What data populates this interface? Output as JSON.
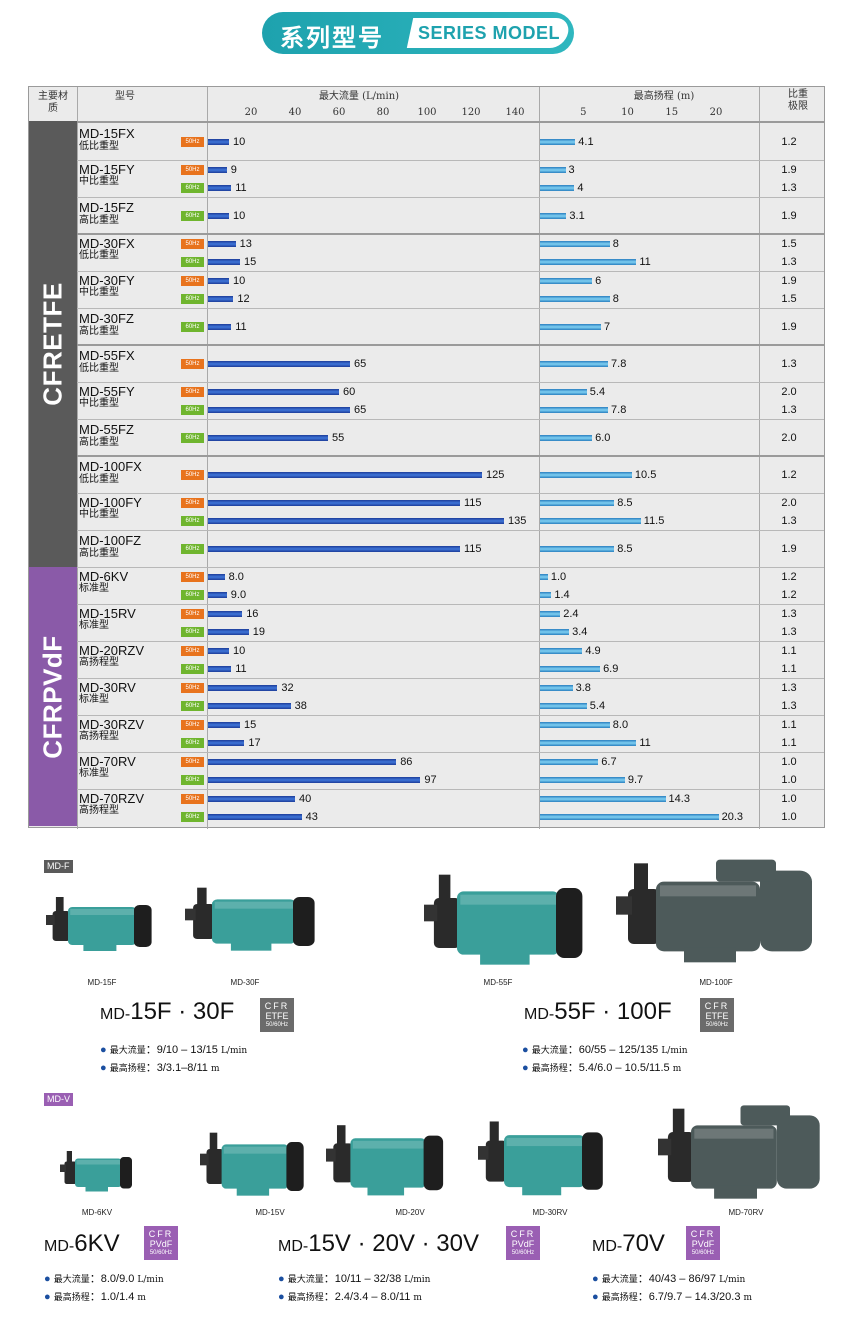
{
  "header": {
    "title_cn": "系列型号",
    "title_en": "SERIES MODEL"
  },
  "table": {
    "col_material": "主要材质",
    "col_model": "型号",
    "col_flow": "最大流量 (L/min)",
    "col_head": "最高扬程 (m)",
    "col_sg": "比重极限",
    "flow_ticks": [
      "20",
      "40",
      "60",
      "80",
      "100",
      "120",
      "140"
    ],
    "head_ticks": [
      "5",
      "10",
      "15",
      "20"
    ],
    "materials": [
      {
        "name": "CFRETFE",
        "color": "#5a5a5a"
      },
      {
        "name": "CFRPVdF",
        "color": "#8a5aa8"
      }
    ],
    "rows": [
      {
        "model": "MD-15FX",
        "type": "低比重型",
        "hz": "50Hz",
        "flow": "10",
        "flow_v": 10,
        "head": "4.1",
        "head_v": 4.1,
        "sg": "1.2",
        "mat": 0
      },
      {
        "model": "MD-15FY",
        "type": "中比重型",
        "hz": "50Hz",
        "flow": "9",
        "flow_v": 9,
        "head": "3",
        "head_v": 3,
        "sg": "1.9",
        "mat": 0
      },
      {
        "model": "",
        "type": "",
        "hz": "60Hz",
        "flow": "11",
        "flow_v": 11,
        "head": "4",
        "head_v": 4,
        "sg": "1.3",
        "mat": 0
      },
      {
        "model": "MD-15FZ",
        "type": "高比重型",
        "hz": "60Hz",
        "flow": "10",
        "flow_v": 10,
        "head": "3.1",
        "head_v": 3.1,
        "sg": "1.9",
        "mat": 0
      },
      {
        "model": "MD-30FX",
        "type": "低比重型",
        "hz": "50Hz",
        "flow": "13",
        "flow_v": 13,
        "head": "8",
        "head_v": 8,
        "sg": "1.5",
        "mat": 0
      },
      {
        "model": "",
        "type": "",
        "hz": "60Hz",
        "flow": "15",
        "flow_v": 15,
        "head": "11",
        "head_v": 11,
        "sg": "1.3",
        "mat": 0
      },
      {
        "model": "MD-30FY",
        "type": "中比重型",
        "hz": "50Hz",
        "flow": "10",
        "flow_v": 10,
        "head": "6",
        "head_v": 6,
        "sg": "1.9",
        "mat": 0
      },
      {
        "model": "",
        "type": "",
        "hz": "60Hz",
        "flow": "12",
        "flow_v": 12,
        "head": "8",
        "head_v": 8,
        "sg": "1.5",
        "mat": 0
      },
      {
        "model": "MD-30FZ",
        "type": "高比重型",
        "hz": "60Hz",
        "flow": "11",
        "flow_v": 11,
        "head": "7",
        "head_v": 7,
        "sg": "1.9",
        "mat": 0
      },
      {
        "model": "MD-55FX",
        "type": "低比重型",
        "hz": "50Hz",
        "flow": "65",
        "flow_v": 65,
        "head": "7.8",
        "head_v": 7.8,
        "sg": "1.3",
        "mat": 0
      },
      {
        "model": "MD-55FY",
        "type": "中比重型",
        "hz": "50Hz",
        "flow": "60",
        "flow_v": 60,
        "head": "5.4",
        "head_v": 5.4,
        "sg": "2.0",
        "mat": 0
      },
      {
        "model": "",
        "type": "",
        "hz": "60Hz",
        "flow": "65",
        "flow_v": 65,
        "head": "7.8",
        "head_v": 7.8,
        "sg": "1.3",
        "mat": 0
      },
      {
        "model": "MD-55FZ",
        "type": "高比重型",
        "hz": "60Hz",
        "flow": "55",
        "flow_v": 55,
        "head": "6.0",
        "head_v": 6.0,
        "sg": "2.0",
        "mat": 0
      },
      {
        "model": "MD-100FX",
        "type": "低比重型",
        "hz": "50Hz",
        "flow": "125",
        "flow_v": 125,
        "head": "10.5",
        "head_v": 10.5,
        "sg": "1.2",
        "mat": 0
      },
      {
        "model": "MD-100FY",
        "type": "中比重型",
        "hz": "50Hz",
        "flow": "115",
        "flow_v": 115,
        "head": "8.5",
        "head_v": 8.5,
        "sg": "2.0",
        "mat": 0
      },
      {
        "model": "",
        "type": "",
        "hz": "60Hz",
        "flow": "135",
        "flow_v": 135,
        "head": "11.5",
        "head_v": 11.5,
        "sg": "1.3",
        "mat": 0
      },
      {
        "model": "MD-100FZ",
        "type": "高比重型",
        "hz": "60Hz",
        "flow": "115",
        "flow_v": 115,
        "head": "8.5",
        "head_v": 8.5,
        "sg": "1.9",
        "mat": 0
      },
      {
        "model": "MD-6KV",
        "type": "标准型",
        "hz": "50Hz",
        "flow": "8.0",
        "flow_v": 8.0,
        "head": "1.0",
        "head_v": 1.0,
        "sg": "1.2",
        "mat": 1
      },
      {
        "model": "",
        "type": "",
        "hz": "60Hz",
        "flow": "9.0",
        "flow_v": 9.0,
        "head": "1.4",
        "head_v": 1.4,
        "sg": "1.2",
        "mat": 1
      },
      {
        "model": "MD-15RV",
        "type": "标准型",
        "hz": "50Hz",
        "flow": "16",
        "flow_v": 16,
        "head": "2.4",
        "head_v": 2.4,
        "sg": "1.3",
        "mat": 1
      },
      {
        "model": "",
        "type": "",
        "hz": "60Hz",
        "flow": "19",
        "flow_v": 19,
        "head": "3.4",
        "head_v": 3.4,
        "sg": "1.3",
        "mat": 1
      },
      {
        "model": "MD-20RZV",
        "type": "高扬程型",
        "hz": "50Hz",
        "flow": "10",
        "flow_v": 10,
        "head": "4.9",
        "head_v": 4.9,
        "sg": "1.1",
        "mat": 1
      },
      {
        "model": "",
        "type": "",
        "hz": "60Hz",
        "flow": "11",
        "flow_v": 11,
        "head": "6.9",
        "head_v": 6.9,
        "sg": "1.1",
        "mat": 1
      },
      {
        "model": "MD-30RV",
        "type": "标准型",
        "hz": "50Hz",
        "flow": "32",
        "flow_v": 32,
        "head": "3.8",
        "head_v": 3.8,
        "sg": "1.3",
        "mat": 1
      },
      {
        "model": "",
        "type": "",
        "hz": "60Hz",
        "flow": "38",
        "flow_v": 38,
        "head": "5.4",
        "head_v": 5.4,
        "sg": "1.3",
        "mat": 1
      },
      {
        "model": "MD-30RZV",
        "type": "高扬程型",
        "hz": "50Hz",
        "flow": "15",
        "flow_v": 15,
        "head": "8.0",
        "head_v": 8.0,
        "sg": "1.1",
        "mat": 1
      },
      {
        "model": "",
        "type": "",
        "hz": "60Hz",
        "flow": "17",
        "flow_v": 17,
        "head": "11",
        "head_v": 11,
        "sg": "1.1",
        "mat": 1
      },
      {
        "model": "MD-70RV",
        "type": "标准型",
        "hz": "50Hz",
        "flow": "86",
        "flow_v": 86,
        "head": "6.7",
        "head_v": 6.7,
        "sg": "1.0",
        "mat": 1
      },
      {
        "model": "",
        "type": "",
        "hz": "60Hz",
        "flow": "97",
        "flow_v": 97,
        "head": "9.7",
        "head_v": 9.7,
        "sg": "1.0",
        "mat": 1
      },
      {
        "model": "MD-70RZV",
        "type": "高扬程型",
        "hz": "50Hz",
        "flow": "40",
        "flow_v": 40,
        "head": "14.3",
        "head_v": 14.3,
        "sg": "1.0",
        "mat": 1
      },
      {
        "model": "",
        "type": "",
        "hz": "60Hz",
        "flow": "43",
        "flow_v": 43,
        "head": "20.3",
        "head_v": 20.3,
        "sg": "1.0",
        "mat": 1
      }
    ]
  },
  "products": {
    "md_f_tag": "MD-F",
    "md_v_tag": "MD-V",
    "f_pumps": [
      "MD-15F",
      "MD-30F",
      "MD-55F",
      "MD-100F"
    ],
    "v_pumps": [
      "MD-6KV",
      "MD-15V",
      "MD-20V",
      "MD-30RV",
      "MD-70RV"
    ],
    "pump_color": "#3a9f9a",
    "groups": [
      {
        "prefix": "MD-",
        "title": "15F · 30F",
        "badge": [
          "CFR",
          "ETFE",
          "50/60Hz"
        ],
        "flow_label": "最大流量",
        "flow": "9/10 – 13/15",
        "flow_unit": "L/min",
        "head_label": "最高扬程",
        "head": "3/3.1–8/11",
        "head_unit": "m"
      },
      {
        "prefix": "MD-",
        "title": "55F · 100F",
        "badge": [
          "CFR",
          "ETFE",
          "50/60Hz"
        ],
        "flow_label": "最大流量",
        "flow": "60/55 – 125/135",
        "flow_unit": "L/min",
        "head_label": "最高扬程",
        "head": "5.4/6.0 – 10.5/11.5",
        "head_unit": "m"
      },
      {
        "prefix": "MD-",
        "title": "6KV",
        "badge": [
          "CFR",
          "PVdF",
          "50/60Hz"
        ],
        "flow_label": "最大流量",
        "flow": "8.0/9.0",
        "flow_unit": "L/min",
        "head_label": "最高扬程",
        "head": "1.0/1.4",
        "head_unit": "m"
      },
      {
        "prefix": "MD-",
        "title": "15V · 20V · 30V",
        "badge": [
          "CFR",
          "PVdF",
          "50/60Hz"
        ],
        "flow_label": "最大流量",
        "flow": "10/11 – 32/38",
        "flow_unit": "L/min",
        "head_label": "最高扬程",
        "head": "2.4/3.4 – 8.0/11",
        "head_unit": "m"
      },
      {
        "prefix": "MD-",
        "title": "70V",
        "badge": [
          "CFR",
          "PVdF",
          "50/60Hz"
        ],
        "flow_label": "最大流量",
        "flow": "40/43 – 86/97",
        "flow_unit": "L/min",
        "head_label": "最高扬程",
        "head": "6.7/9.7 – 14.3/20.3",
        "head_unit": "m"
      }
    ]
  }
}
